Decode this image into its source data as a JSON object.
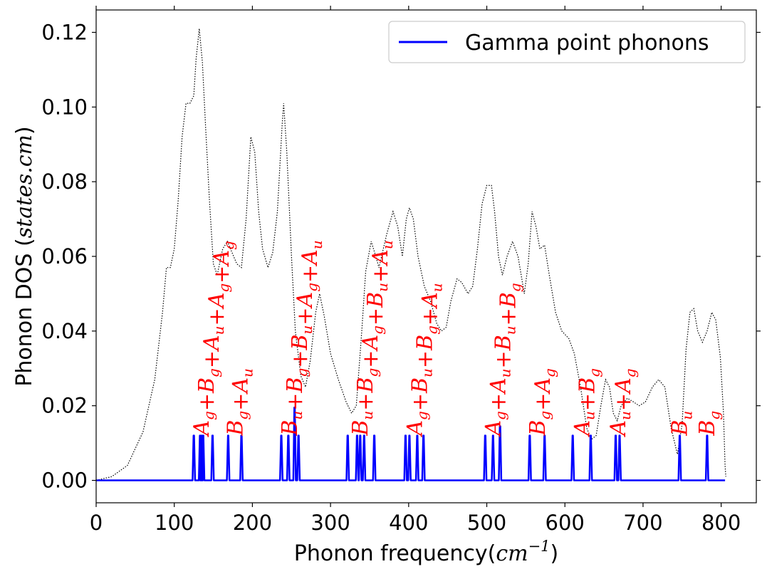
{
  "chart_data": {
    "type": "line",
    "xlabel_main": "Phonon frequency(",
    "xlabel_unit": "cm",
    "xlabel_exp": "−1",
    "xlabel_close": ")",
    "ylabel_main": "Phonon DOS (",
    "ylabel_unit": "states.cm",
    "ylabel_close": ")",
    "xlim": [
      0,
      845
    ],
    "ylim": [
      -0.006,
      0.126
    ],
    "x_ticks": [
      0,
      100,
      200,
      300,
      400,
      500,
      600,
      700,
      800
    ],
    "x_tick_labels": [
      "0",
      "100",
      "200",
      "300",
      "400",
      "500",
      "600",
      "700",
      "800"
    ],
    "y_ticks": [
      0.0,
      0.02,
      0.04,
      0.06,
      0.08,
      0.1,
      0.12
    ],
    "y_tick_labels": [
      "0.00",
      "0.02",
      "0.04",
      "0.06",
      "0.08",
      "0.10",
      "0.12"
    ],
    "grid": false,
    "legend_position": "top-right",
    "legend": [
      {
        "name": "Gamma point phonons",
        "color": "#0000ff"
      }
    ],
    "series": [
      {
        "name": "Gamma point phonons",
        "color": "#0000ff",
        "style": "solid",
        "peaks": [
          [
            125,
            0.012
          ],
          [
            133,
            0.012
          ],
          [
            135,
            0.012
          ],
          [
            137,
            0.012
          ],
          [
            149,
            0.012
          ],
          [
            169,
            0.012
          ],
          [
            186,
            0.012
          ],
          [
            237,
            0.012
          ],
          [
            246,
            0.012
          ],
          [
            254,
            0.0195
          ],
          [
            259,
            0.012
          ],
          [
            322,
            0.012
          ],
          [
            334,
            0.012
          ],
          [
            338,
            0.012
          ],
          [
            343,
            0.012
          ],
          [
            356,
            0.012
          ],
          [
            396,
            0.012
          ],
          [
            401,
            0.012
          ],
          [
            411,
            0.012
          ],
          [
            419,
            0.012
          ],
          [
            498,
            0.012
          ],
          [
            508,
            0.012
          ],
          [
            517,
            0.0145
          ],
          [
            555,
            0.012
          ],
          [
            574,
            0.012
          ],
          [
            610,
            0.012
          ],
          [
            633,
            0.012
          ],
          [
            665,
            0.012
          ],
          [
            670,
            0.012
          ],
          [
            747,
            0.012
          ],
          [
            782,
            0.012
          ]
        ],
        "x_range": [
          0,
          805
        ]
      },
      {
        "color": "#000000",
        "style": "dotted",
        "points": [
          [
            0,
            0
          ],
          [
            20,
            0.001
          ],
          [
            40,
            0.004
          ],
          [
            60,
            0.013
          ],
          [
            75,
            0.027
          ],
          [
            85,
            0.045
          ],
          [
            90,
            0.057
          ],
          [
            95,
            0.057
          ],
          [
            100,
            0.062
          ],
          [
            105,
            0.075
          ],
          [
            110,
            0.092
          ],
          [
            115,
            0.101
          ],
          [
            120,
            0.101
          ],
          [
            125,
            0.103
          ],
          [
            128,
            0.113
          ],
          [
            132,
            0.121
          ],
          [
            136,
            0.112
          ],
          [
            140,
            0.095
          ],
          [
            145,
            0.075
          ],
          [
            150,
            0.058
          ],
          [
            155,
            0.055
          ],
          [
            162,
            0.062
          ],
          [
            168,
            0.064
          ],
          [
            174,
            0.061
          ],
          [
            180,
            0.058
          ],
          [
            186,
            0.057
          ],
          [
            192,
            0.07
          ],
          [
            198,
            0.092
          ],
          [
            203,
            0.088
          ],
          [
            208,
            0.072
          ],
          [
            213,
            0.062
          ],
          [
            220,
            0.057
          ],
          [
            226,
            0.061
          ],
          [
            232,
            0.072
          ],
          [
            238,
            0.095
          ],
          [
            240,
            0.101
          ],
          [
            244,
            0.088
          ],
          [
            250,
            0.06
          ],
          [
            255,
            0.04
          ],
          [
            262,
            0.028
          ],
          [
            268,
            0.025
          ],
          [
            274,
            0.032
          ],
          [
            281,
            0.045
          ],
          [
            286,
            0.05
          ],
          [
            292,
            0.044
          ],
          [
            300,
            0.034
          ],
          [
            310,
            0.027
          ],
          [
            320,
            0.021
          ],
          [
            327,
            0.018
          ],
          [
            333,
            0.02
          ],
          [
            340,
            0.04
          ],
          [
            345,
            0.056
          ],
          [
            352,
            0.064
          ],
          [
            358,
            0.06
          ],
          [
            362,
            0.057
          ],
          [
            372,
            0.066
          ],
          [
            380,
            0.072
          ],
          [
            386,
            0.068
          ],
          [
            392,
            0.06
          ],
          [
            397,
            0.07
          ],
          [
            401,
            0.073
          ],
          [
            406,
            0.07
          ],
          [
            412,
            0.06
          ],
          [
            420,
            0.052
          ],
          [
            428,
            0.048
          ],
          [
            436,
            0.042
          ],
          [
            442,
            0.04
          ],
          [
            448,
            0.041
          ],
          [
            454,
            0.048
          ],
          [
            462,
            0.054
          ],
          [
            468,
            0.053
          ],
          [
            476,
            0.05
          ],
          [
            482,
            0.052
          ],
          [
            488,
            0.062
          ],
          [
            494,
            0.074
          ],
          [
            500,
            0.079
          ],
          [
            506,
            0.079
          ],
          [
            510,
            0.072
          ],
          [
            515,
            0.06
          ],
          [
            520,
            0.055
          ],
          [
            526,
            0.06
          ],
          [
            533,
            0.064
          ],
          [
            540,
            0.06
          ],
          [
            548,
            0.05
          ],
          [
            553,
            0.058
          ],
          [
            558,
            0.072
          ],
          [
            563,
            0.068
          ],
          [
            568,
            0.062
          ],
          [
            574,
            0.063
          ],
          [
            580,
            0.055
          ],
          [
            588,
            0.045
          ],
          [
            596,
            0.04
          ],
          [
            605,
            0.038
          ],
          [
            612,
            0.034
          ],
          [
            620,
            0.025
          ],
          [
            628,
            0.014
          ],
          [
            634,
            0.011
          ],
          [
            640,
            0.012
          ],
          [
            646,
            0.02
          ],
          [
            652,
            0.027
          ],
          [
            657,
            0.025
          ],
          [
            662,
            0.018
          ],
          [
            667,
            0.016
          ],
          [
            672,
            0.02
          ],
          [
            680,
            0.022
          ],
          [
            688,
            0.021
          ],
          [
            695,
            0.02
          ],
          [
            703,
            0.021
          ],
          [
            712,
            0.025
          ],
          [
            720,
            0.027
          ],
          [
            728,
            0.025
          ],
          [
            736,
            0.014
          ],
          [
            744,
            0.007
          ],
          [
            750,
            0.015
          ],
          [
            755,
            0.035
          ],
          [
            760,
            0.045
          ],
          [
            765,
            0.046
          ],
          [
            770,
            0.04
          ],
          [
            776,
            0.037
          ],
          [
            782,
            0.04
          ],
          [
            788,
            0.045
          ],
          [
            793,
            0.043
          ],
          [
            799,
            0.033
          ],
          [
            803,
            0.018
          ],
          [
            805,
            0.004
          ],
          [
            806,
            0.001
          ]
        ]
      }
    ],
    "annotations": [
      {
        "x": 135,
        "parts": [
          [
            "A",
            "g"
          ],
          [
            "B",
            "g"
          ],
          [
            "A",
            "u"
          ],
          [
            "A",
            "g"
          ],
          [
            "A",
            "g"
          ]
        ]
      },
      {
        "x": 178,
        "parts": [
          [
            "B",
            "g"
          ],
          [
            "A",
            "u"
          ]
        ]
      },
      {
        "x": 248,
        "parts": [
          [
            "B",
            "u"
          ],
          [
            "B",
            "g"
          ],
          [
            "B",
            "u"
          ],
          [
            "A",
            "g"
          ],
          [
            "A",
            "u"
          ]
        ]
      },
      {
        "x": 338,
        "parts": [
          [
            "B",
            "u"
          ],
          [
            "B",
            "g"
          ],
          [
            "A",
            "g"
          ],
          [
            "B",
            "u"
          ],
          [
            "A",
            "u"
          ]
        ]
      },
      {
        "x": 408,
        "parts": [
          [
            "A",
            "g"
          ],
          [
            "B",
            "u"
          ],
          [
            "B",
            "g"
          ],
          [
            "A",
            "u"
          ]
        ]
      },
      {
        "x": 508,
        "parts": [
          [
            "A",
            "g"
          ],
          [
            "A",
            "u"
          ],
          [
            "B",
            "u"
          ],
          [
            "B",
            "g"
          ]
        ]
      },
      {
        "x": 565,
        "parts": [
          [
            "B",
            "g"
          ],
          [
            "A",
            "g"
          ]
        ]
      },
      {
        "x": 622,
        "parts": [
          [
            "A",
            "u"
          ],
          [
            "B",
            "g"
          ]
        ]
      },
      {
        "x": 668,
        "parts": [
          [
            "A",
            "u"
          ],
          [
            "A",
            "g"
          ]
        ]
      },
      {
        "x": 747,
        "parts": [
          [
            "B",
            "u"
          ]
        ]
      },
      {
        "x": 782,
        "parts": [
          [
            "B",
            "g"
          ]
        ]
      }
    ]
  }
}
